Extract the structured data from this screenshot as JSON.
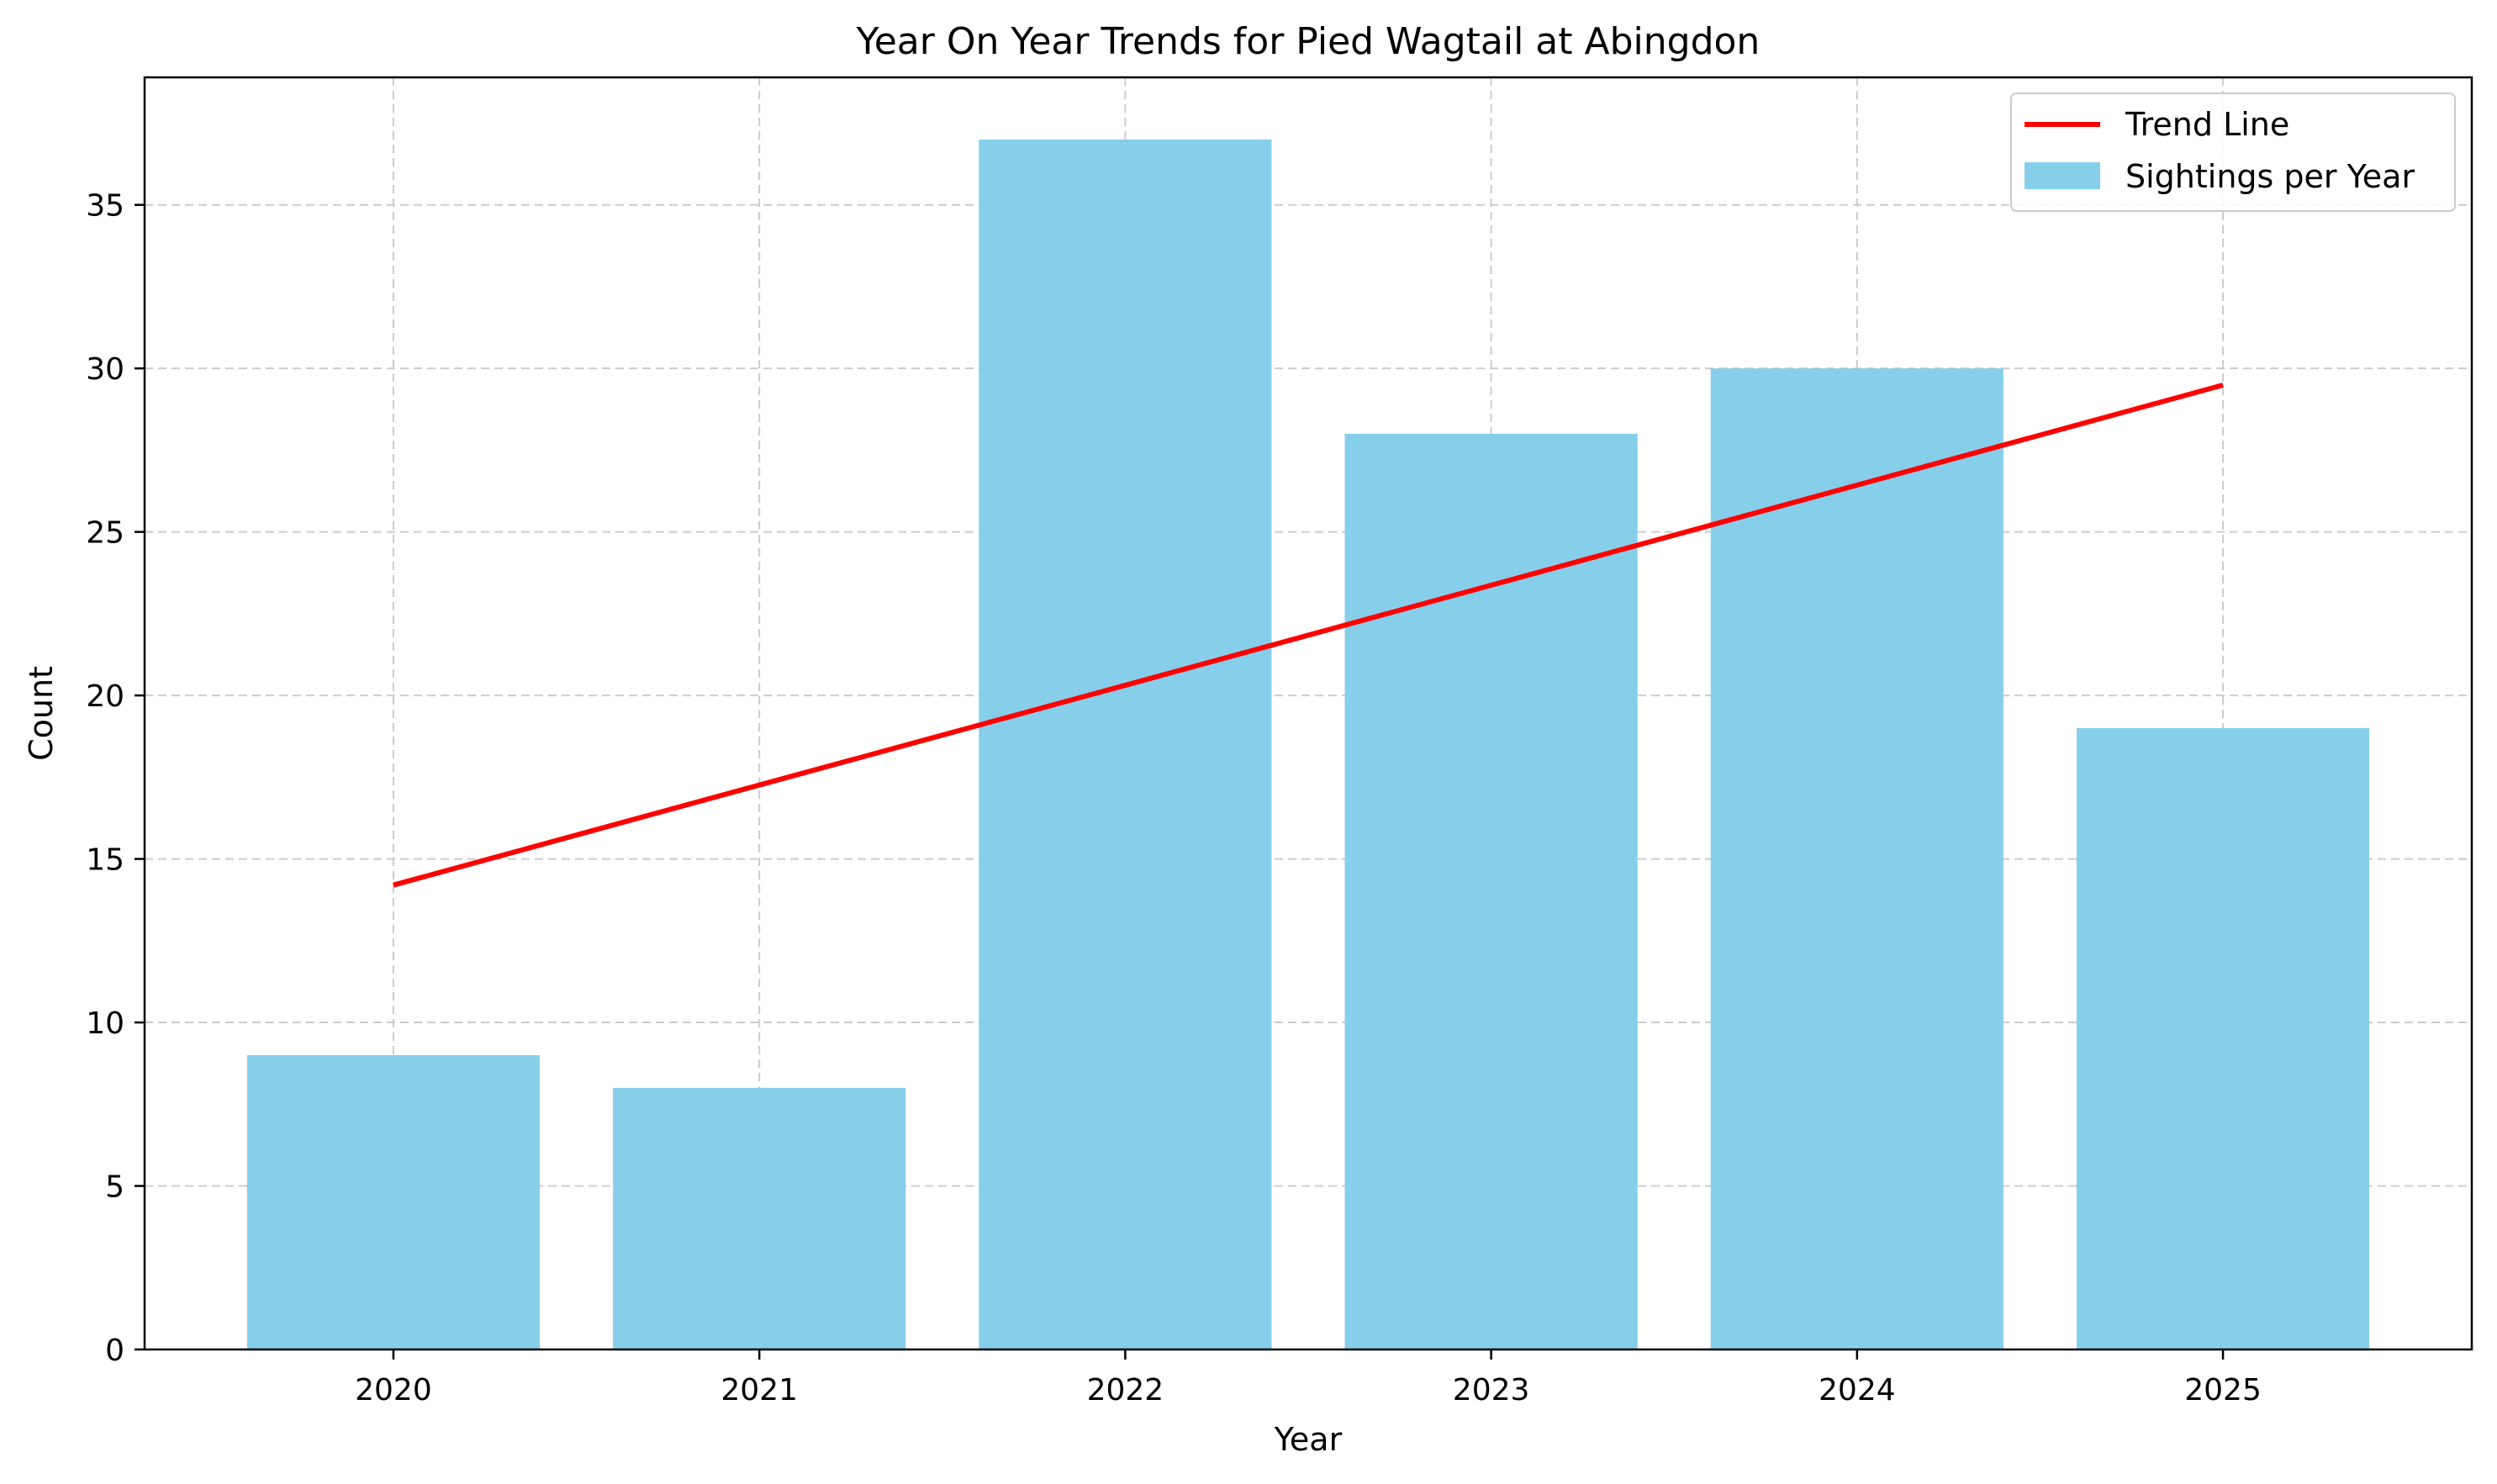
{
  "chart_data": {
    "type": "bar",
    "title": "Year On Year Trends for Pied Wagtail at Abingdon",
    "xlabel": "Year",
    "ylabel": "Count",
    "categories": [
      "2020",
      "2021",
      "2022",
      "2023",
      "2024",
      "2025"
    ],
    "series": [
      {
        "name": "Sightings per Year",
        "type": "bar",
        "values": [
          9,
          8,
          37,
          28,
          30,
          19
        ],
        "color": "#87CEEB"
      },
      {
        "name": "Trend Line",
        "type": "line",
        "values": [
          14.2,
          17.26,
          20.31,
          23.37,
          26.43,
          29.49
        ],
        "color": "#FF0000"
      }
    ],
    "ylim": [
      0,
      38.9
    ],
    "yticks": [
      0,
      5,
      10,
      15,
      20,
      25,
      30,
      35
    ],
    "grid": true,
    "legend_position": "upper right"
  }
}
